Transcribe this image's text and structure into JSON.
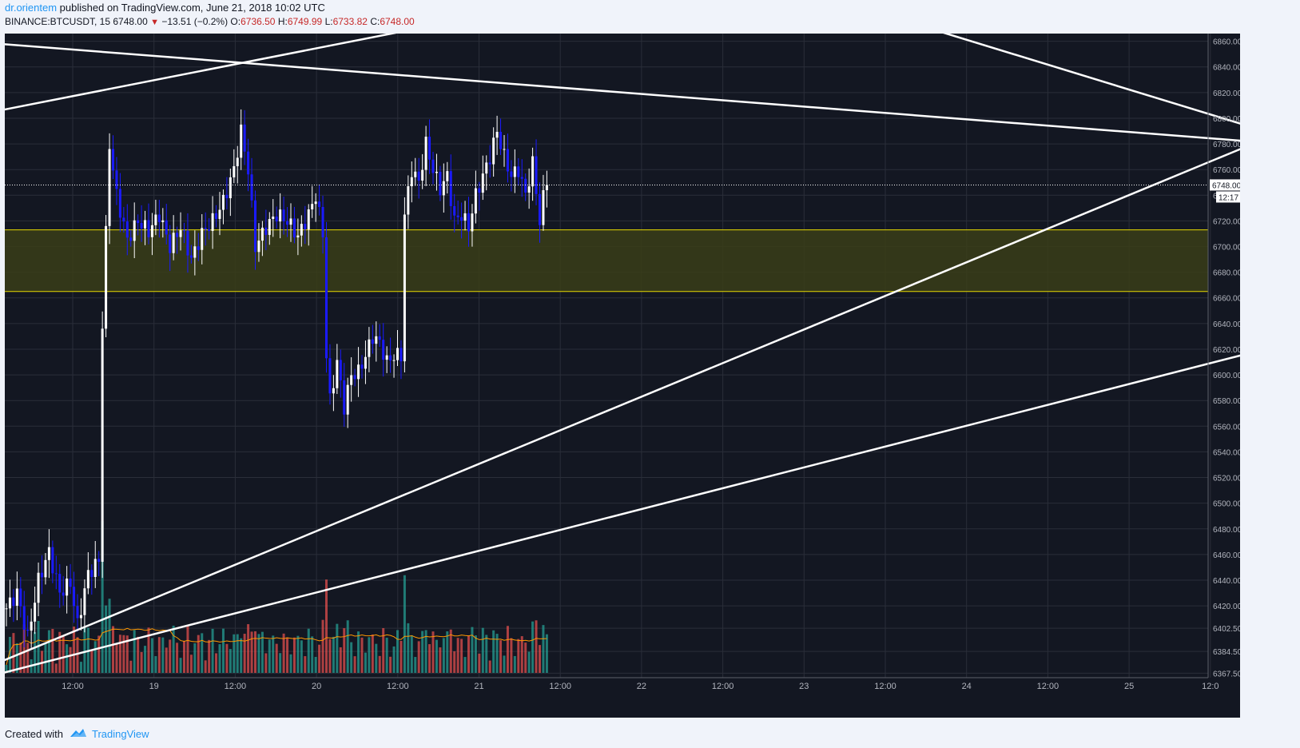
{
  "header": {
    "author": "dr.orientem",
    "published_text": "published on TradingView.com, June 21, 2018 10:02 UTC",
    "symbol_line": "BINANCE:BTCUSDT, 15",
    "last": "6748.00",
    "change": "−13.51 (−0.2%)",
    "o_label": "O:",
    "o_value": "6736.50",
    "h_label": "H:",
    "h_value": "6749.99",
    "l_label": "L:",
    "l_value": "6733.82",
    "c_label": "C:",
    "c_value": "6748.00"
  },
  "footer": {
    "created_with": "Created with",
    "brand": "TradingView"
  },
  "colors": {
    "background": "#131722",
    "grid": "#2a2e39",
    "candle_up": "#ffffff",
    "candle_down": "#1a1aff",
    "zone_fill": "#3a3d18",
    "zone_border": "#e6d800",
    "volume_up": "#26a69a",
    "volume_down": "#ef5350",
    "volume_ma": "#ff9800",
    "trendline": "#ffffff"
  },
  "chart_data": {
    "type": "candlestick",
    "symbol": "BINANCE:BTCUSDT",
    "interval": "15",
    "price_ticks": [
      "6860.00",
      "6840.00",
      "6820.00",
      "6800.00",
      "6780.00",
      "6760.00",
      "6740.00",
      "6720.00",
      "6700.00",
      "6680.00",
      "6660.00",
      "6640.00",
      "6620.00",
      "6600.00",
      "6580.00",
      "6560.00",
      "6540.00",
      "6520.00",
      "6500.00",
      "6480.00",
      "6460.00",
      "6440.00",
      "6420.00",
      "6402.50",
      "6384.50",
      "6367.50"
    ],
    "price_range": [
      6364,
      6866
    ],
    "x_ticks": [
      "12:00",
      "19",
      "12:00",
      "20",
      "12:00",
      "21",
      "12:00",
      "22",
      "12:00",
      "23",
      "12:00",
      "24",
      "12:00",
      "25",
      "12:0"
    ],
    "current_price_label": "6748.00",
    "countdown_label": "12:17",
    "support_zone": [
      6665,
      6713
    ],
    "price_path": [
      [
        0,
        6418
      ],
      [
        3,
        6430
      ],
      [
        6,
        6395
      ],
      [
        9,
        6440
      ],
      [
        12,
        6462
      ],
      [
        15,
        6430
      ],
      [
        18,
        6438
      ],
      [
        20,
        6405
      ],
      [
        23,
        6445
      ],
      [
        26,
        6455
      ],
      [
        27,
        6640
      ],
      [
        29,
        6780
      ],
      [
        31,
        6740
      ],
      [
        34,
        6705
      ],
      [
        37,
        6720
      ],
      [
        40,
        6712
      ],
      [
        43,
        6725
      ],
      [
        46,
        6700
      ],
      [
        49,
        6715
      ],
      [
        52,
        6690
      ],
      [
        55,
        6710
      ],
      [
        58,
        6720
      ],
      [
        61,
        6735
      ],
      [
        64,
        6760
      ],
      [
        66,
        6790
      ],
      [
        68,
        6760
      ],
      [
        70,
        6700
      ],
      [
        73,
        6715
      ],
      [
        76,
        6725
      ],
      [
        79,
        6720
      ],
      [
        82,
        6708
      ],
      [
        85,
        6725
      ],
      [
        87,
        6740
      ],
      [
        89,
        6710
      ],
      [
        90,
        6615
      ],
      [
        91,
        6580
      ],
      [
        93,
        6610
      ],
      [
        95,
        6575
      ],
      [
        97,
        6600
      ],
      [
        99,
        6602
      ],
      [
        101,
        6615
      ],
      [
        103,
        6630
      ],
      [
        105,
        6625
      ],
      [
        107,
        6610
      ],
      [
        109,
        6615
      ],
      [
        111,
        6615
      ],
      [
        112,
        6725
      ],
      [
        114,
        6760
      ],
      [
        116,
        6750
      ],
      [
        118,
        6780
      ],
      [
        120,
        6760
      ],
      [
        122,
        6745
      ],
      [
        124,
        6755
      ],
      [
        126,
        6720
      ],
      [
        128,
        6725
      ],
      [
        130,
        6715
      ],
      [
        132,
        6740
      ],
      [
        134,
        6755
      ],
      [
        136,
        6770
      ],
      [
        138,
        6790
      ],
      [
        140,
        6770
      ],
      [
        142,
        6755
      ],
      [
        144,
        6760
      ],
      [
        146,
        6740
      ],
      [
        148,
        6765
      ],
      [
        150,
        6720
      ],
      [
        151,
        6738
      ],
      [
        152,
        6748
      ]
    ],
    "volume_ma_note": "volume overlay with moving average at bottom",
    "trendlines": [
      {
        "from": [
          -2,
          6858
        ],
        "to": [
          368,
          6778
        ]
      },
      {
        "from": [
          -2,
          6806
        ],
        "to": [
          112,
          6868
        ]
      },
      {
        "from": [
          262,
          6868
        ],
        "to": [
          368,
          6778
        ]
      },
      {
        "from": [
          -2,
          6376
        ],
        "to": [
          368,
          6800
        ]
      },
      {
        "from": [
          -2,
          6367
        ],
        "to": [
          368,
          6630
        ]
      }
    ]
  }
}
